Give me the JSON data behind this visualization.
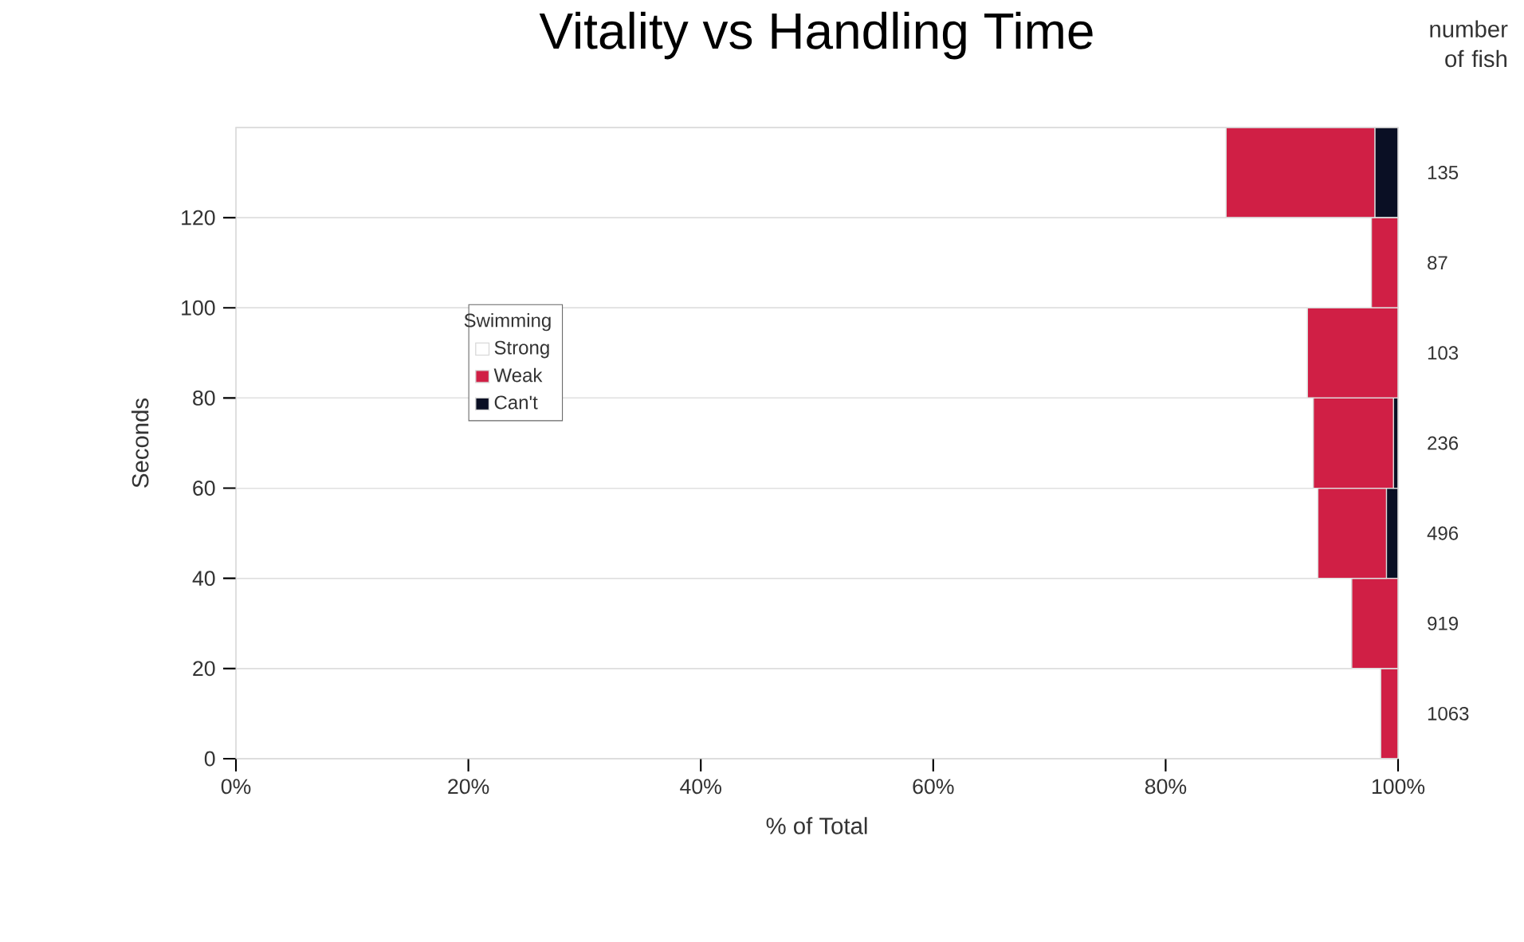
{
  "chart_data": {
    "type": "bar",
    "orientation": "horizontal",
    "stacked": true,
    "title": "Vitality vs Handling Time",
    "xlabel": "% of Total",
    "ylabel": "Seconds",
    "legend_title": "Swimming",
    "x": [
      10,
      30,
      50,
      70,
      90,
      110,
      130
    ],
    "series": [
      {
        "name": "Strong",
        "color": "#ffffff",
        "values": [
          98.5,
          96.0,
          93.1,
          92.7,
          92.2,
          97.7,
          85.2
        ]
      },
      {
        "name": "Weak",
        "color": "#d01f45",
        "values": [
          1.5,
          4.0,
          5.9,
          6.9,
          7.8,
          2.3,
          12.8
        ]
      },
      {
        "name": "Can't",
        "color": "#0a0f24",
        "values": [
          0,
          0,
          1.0,
          0.4,
          0,
          0,
          2.0
        ]
      }
    ],
    "xlim": [
      0,
      100
    ],
    "xticks": [
      {
        "value": 0,
        "label": "0%"
      },
      {
        "value": 20,
        "label": "20%"
      },
      {
        "value": 40,
        "label": "40%"
      },
      {
        "value": 60,
        "label": "60%"
      },
      {
        "value": 80,
        "label": "80%"
      },
      {
        "value": 100,
        "label": "100%"
      }
    ],
    "ylim": [
      0,
      140
    ],
    "yticks": [
      0,
      20,
      40,
      60,
      80,
      100,
      120
    ],
    "grid": "y",
    "legend": "left",
    "annotations": [
      "number of fish",
      "135",
      "87",
      "103",
      "236",
      "496",
      "919",
      "1063"
    ]
  }
}
